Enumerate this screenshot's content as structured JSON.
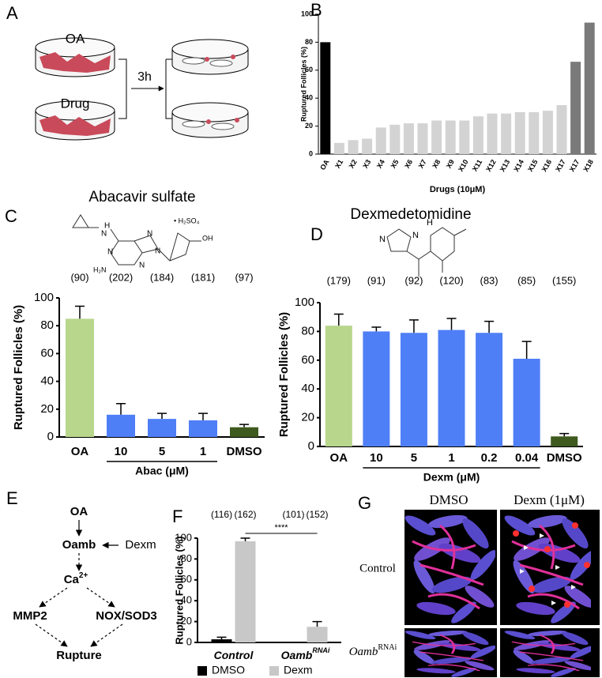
{
  "chart_data": [
    {
      "type": "bar",
      "letter": "B",
      "ylabel": "Ruptured Follicles (%)",
      "xlabel": "Drugs (10μM)",
      "categories": [
        "OA",
        "X1",
        "X2",
        "X3",
        "X4",
        "X5",
        "X6",
        "X7",
        "X8",
        "X9",
        "X10",
        "X11",
        "X12",
        "X13",
        "X14",
        "X15",
        "X16",
        "X17",
        "X17",
        "X18"
      ],
      "values": [
        80,
        8,
        10,
        11,
        19,
        21,
        22,
        22,
        24,
        24,
        24,
        27,
        29,
        29,
        30,
        30,
        31,
        35,
        66,
        94
      ],
      "colors": [
        "#000000",
        "#d3d3d3",
        "#d3d3d3",
        "#d3d3d3",
        "#d3d3d3",
        "#d3d3d3",
        "#d3d3d3",
        "#d3d3d3",
        "#d3d3d3",
        "#d3d3d3",
        "#d3d3d3",
        "#d3d3d3",
        "#d3d3d3",
        "#d3d3d3",
        "#d3d3d3",
        "#d3d3d3",
        "#d3d3d3",
        "#d3d3d3",
        "#7a7a7a",
        "#7a7a7a"
      ],
      "ylim": [
        0,
        100
      ],
      "yticks": [
        0,
        20,
        40,
        60,
        80,
        100
      ]
    },
    {
      "type": "bar",
      "letter": "C",
      "title": "Abacavir sulfate",
      "ylabel": "Ruptured Follicles (%)",
      "structure": [
        "H",
        "N",
        "N",
        "N",
        "N",
        "N",
        "H₂N",
        "• H₂SO₄",
        "OH"
      ],
      "categories": [
        "OA",
        "10",
        "5",
        "1",
        "DMSO"
      ],
      "values": [
        85,
        16,
        13,
        12,
        7
      ],
      "errors": [
        9,
        8,
        4,
        5,
        2
      ],
      "colors": [
        "#b8d68c",
        "#4f7ff7",
        "#4f7ff7",
        "#4f7ff7",
        "#3e5a1e"
      ],
      "counts": [
        "(90)",
        "(202)",
        "(184)",
        "(181)",
        "(97)"
      ],
      "group_label": "Abac (μM)",
      "ylim": [
        0,
        100
      ],
      "yticks": [
        0,
        20,
        40,
        60,
        80,
        100
      ]
    },
    {
      "type": "bar",
      "letter": "D",
      "title": "Dexmedetomidine",
      "ylabel": "Ruptured Follicles (%)",
      "structure": [
        "N",
        "H",
        "N"
      ],
      "categories": [
        "OA",
        "10",
        "5",
        "1",
        "0.2",
        "0.04",
        "DMSO"
      ],
      "values": [
        84,
        80,
        79,
        81,
        79,
        61,
        7
      ],
      "errors": [
        8,
        3,
        9,
        8,
        8,
        12,
        2
      ],
      "colors": [
        "#b8d68c",
        "#4f7ff7",
        "#4f7ff7",
        "#4f7ff7",
        "#4f7ff7",
        "#4f7ff7",
        "#3e5a1e"
      ],
      "counts": [
        "(179)",
        "(91)",
        "(92)",
        "(120)",
        "(83)",
        "(85)",
        "(155)"
      ],
      "group_label": "Dexm (μM)",
      "ylim": [
        0,
        100
      ],
      "yticks": [
        0,
        20,
        40,
        60,
        80,
        100
      ]
    },
    {
      "type": "grouped_bar",
      "letter": "F",
      "ylabel": "Ruptured Follicles (%)",
      "categories": [
        {
          "label": "Control"
        },
        {
          "label": "Oamb",
          "sup": "RNAi"
        }
      ],
      "series": [
        {
          "name": "DMSO",
          "color": "#000000",
          "values": [
            3,
            0
          ],
          "errors": [
            2,
            0
          ]
        },
        {
          "name": "Dexm",
          "color": "#c8c8c8",
          "values": [
            97,
            15
          ],
          "errors": [
            3,
            5
          ]
        }
      ],
      "counts": [
        "(116)",
        "(162)",
        "(101)",
        "(152)"
      ],
      "significance": "****",
      "legend": "bottom",
      "ylim": [
        0,
        100
      ],
      "yticks": [
        0,
        20,
        40,
        60,
        80,
        100
      ]
    }
  ],
  "panel_a": {
    "letter": "A",
    "dish_labels": [
      "OA",
      "Drug"
    ],
    "time": "3h"
  },
  "panel_e": {
    "letter": "E",
    "nodes": {
      "oa": "OA",
      "oamb": "Oamb",
      "dexm": "Dexm",
      "ca": {
        "label": "Ca",
        "sup": "2+"
      },
      "mmp2": "MMP2",
      "nox": "NOX/SOD3",
      "rupture": "Rupture"
    }
  },
  "panel_g": {
    "letter": "G",
    "columns": [
      "DMSO",
      "Dexm (1μM)"
    ],
    "rows": [
      {
        "label": "Control"
      },
      {
        "label": "Oamb",
        "sup": "RNAi"
      }
    ]
  }
}
